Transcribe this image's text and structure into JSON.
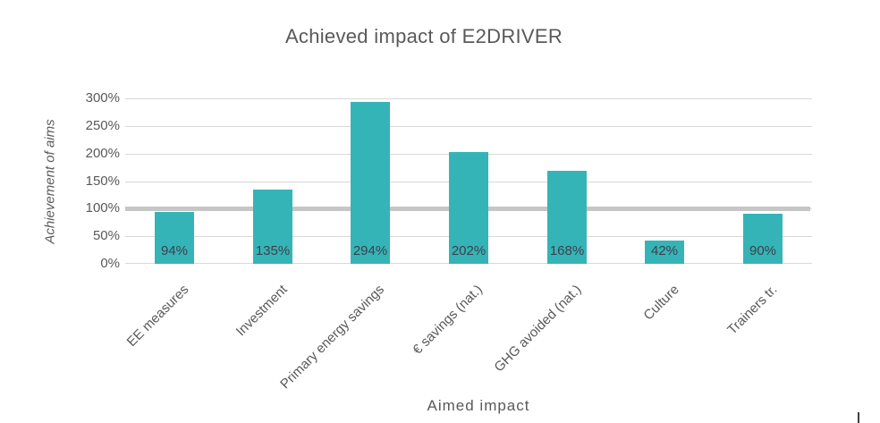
{
  "chart_data": {
    "type": "bar",
    "title": "Achieved impact of E2DRIVER",
    "xlabel": "Aimed impact",
    "ylabel": "Achievement of aims",
    "categories": [
      "EE measures",
      "Investment",
      "Primary energy savings",
      "€ savings (nat.)",
      "GHG avoided (nat.)",
      "Culture",
      "Trainers tr."
    ],
    "values": [
      94,
      135,
      294,
      202,
      168,
      42,
      90
    ],
    "data_labels": [
      "94%",
      "135%",
      "294%",
      "202%",
      "168%",
      "42%",
      "90%"
    ],
    "y_ticks": [
      {
        "label": "0%",
        "value": 0
      },
      {
        "label": "50%",
        "value": 50
      },
      {
        "label": "100%",
        "value": 100
      },
      {
        "label": "150%",
        "value": 150
      },
      {
        "label": "200%",
        "value": 200
      },
      {
        "label": "250%",
        "value": 250
      },
      {
        "label": "300%",
        "value": 300
      }
    ],
    "ylim": [
      0,
      300
    ],
    "reference_line_value": 100,
    "grid": true,
    "legend": false,
    "colors": {
      "bar": "#35b4b7",
      "gridline": "#d9d9d9",
      "reference_line": "#c6c6c6",
      "title_text": "#595959",
      "axis_text": "#595959",
      "data_label_text": "#3f3f4c"
    }
  }
}
